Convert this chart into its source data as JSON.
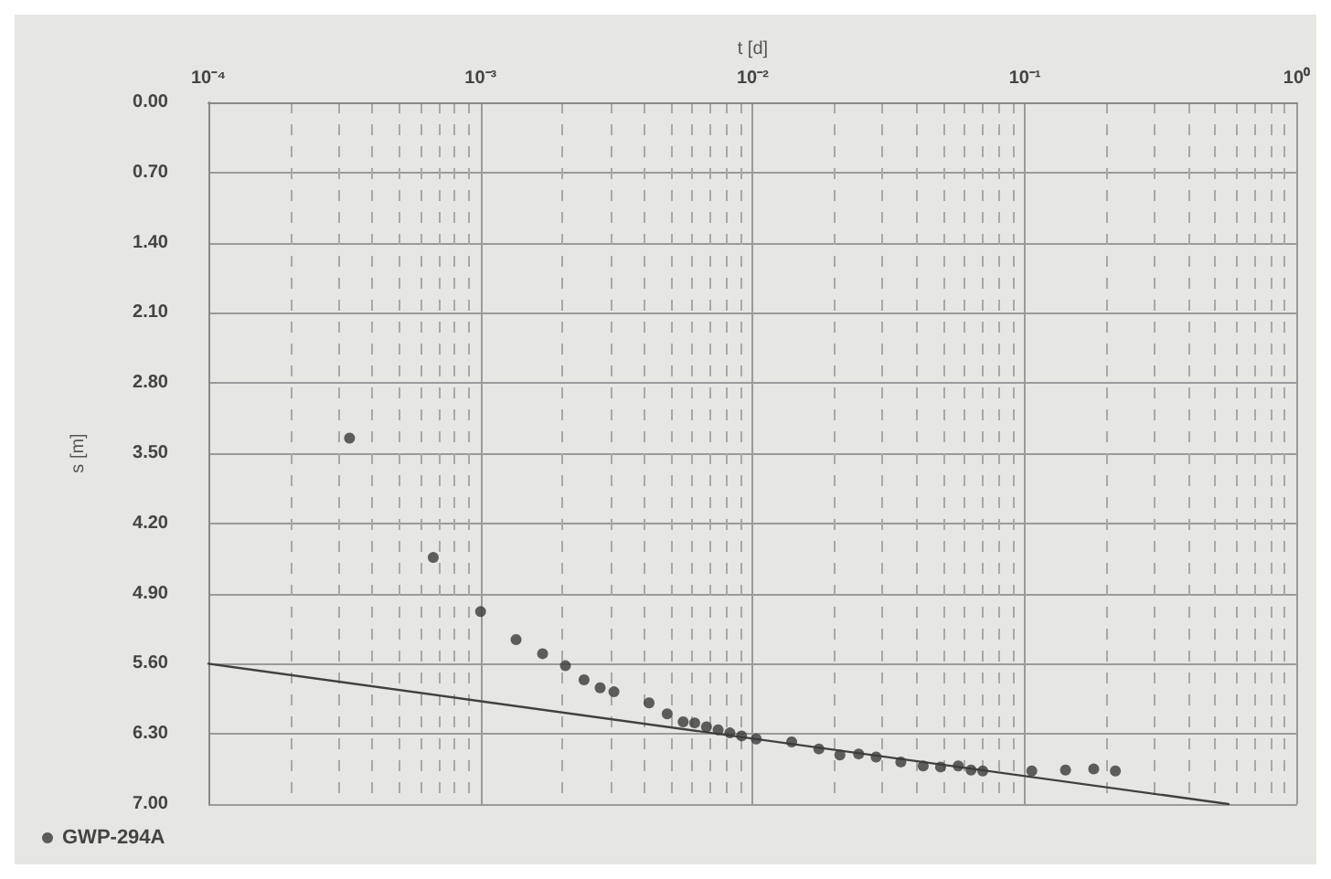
{
  "chart_data": {
    "type": "scatter",
    "xlabel": "t [d]",
    "ylabel": "s [m]",
    "log": "x",
    "grid": true,
    "legend": "bottom left",
    "marker": "circle",
    "xlim": [
      0.0001,
      1
    ],
    "xticks": [
      {
        "value": 0.0001,
        "label": "10⁻⁴"
      },
      {
        "value": 0.001,
        "label": "10⁻³"
      },
      {
        "value": 0.01,
        "label": "10⁻²"
      },
      {
        "value": 0.1,
        "label": "10⁻¹"
      },
      {
        "value": 1,
        "label": "10⁰"
      }
    ],
    "ylim": [
      7,
      0
    ],
    "yticks": [
      {
        "value": 0,
        "label": "0.00"
      },
      {
        "value": 0.7,
        "label": "0.70"
      },
      {
        "value": 1.4,
        "label": "1.40"
      },
      {
        "value": 2.1,
        "label": "2.10"
      },
      {
        "value": 2.8,
        "label": "2.80"
      },
      {
        "value": 3.5,
        "label": "3.50"
      },
      {
        "value": 4.2,
        "label": "4.20"
      },
      {
        "value": 4.9,
        "label": "4.90"
      },
      {
        "value": 5.6,
        "label": "5.60"
      },
      {
        "value": 6.3,
        "label": "6.30"
      },
      {
        "value": 7,
        "label": "7.00"
      }
    ],
    "series": [
      {
        "name": "GWP-294A",
        "color": "#3a3a3a",
        "x": [
          0.00033,
          0.00067,
          0.001,
          0.00135,
          0.00169,
          0.00205,
          0.0024,
          0.00275,
          0.00309,
          0.00416,
          0.00485,
          0.00555,
          0.00612,
          0.00676,
          0.00746,
          0.00824,
          0.0091,
          0.0103,
          0.0139,
          0.0175,
          0.0209,
          0.0245,
          0.0284,
          0.035,
          0.0423,
          0.049,
          0.0569,
          0.0634,
          0.07,
          0.106,
          0.141,
          0.179,
          0.215
        ],
        "values": [
          3.35,
          4.54,
          5.08,
          5.36,
          5.5,
          5.62,
          5.76,
          5.84,
          5.88,
          5.99,
          6.1,
          6.18,
          6.19,
          6.23,
          6.26,
          6.29,
          6.32,
          6.35,
          6.38,
          6.45,
          6.51,
          6.5,
          6.53,
          6.58,
          6.62,
          6.63,
          6.62,
          6.66,
          6.67,
          6.67,
          6.66,
          6.65,
          6.67
        ]
      },
      {
        "type": "line",
        "color": "#404040",
        "marker": "none",
        "line_style": "solid",
        "x": [
          0.0001,
          0.56
        ],
        "values": [
          5.6,
          7
        ]
      }
    ]
  }
}
